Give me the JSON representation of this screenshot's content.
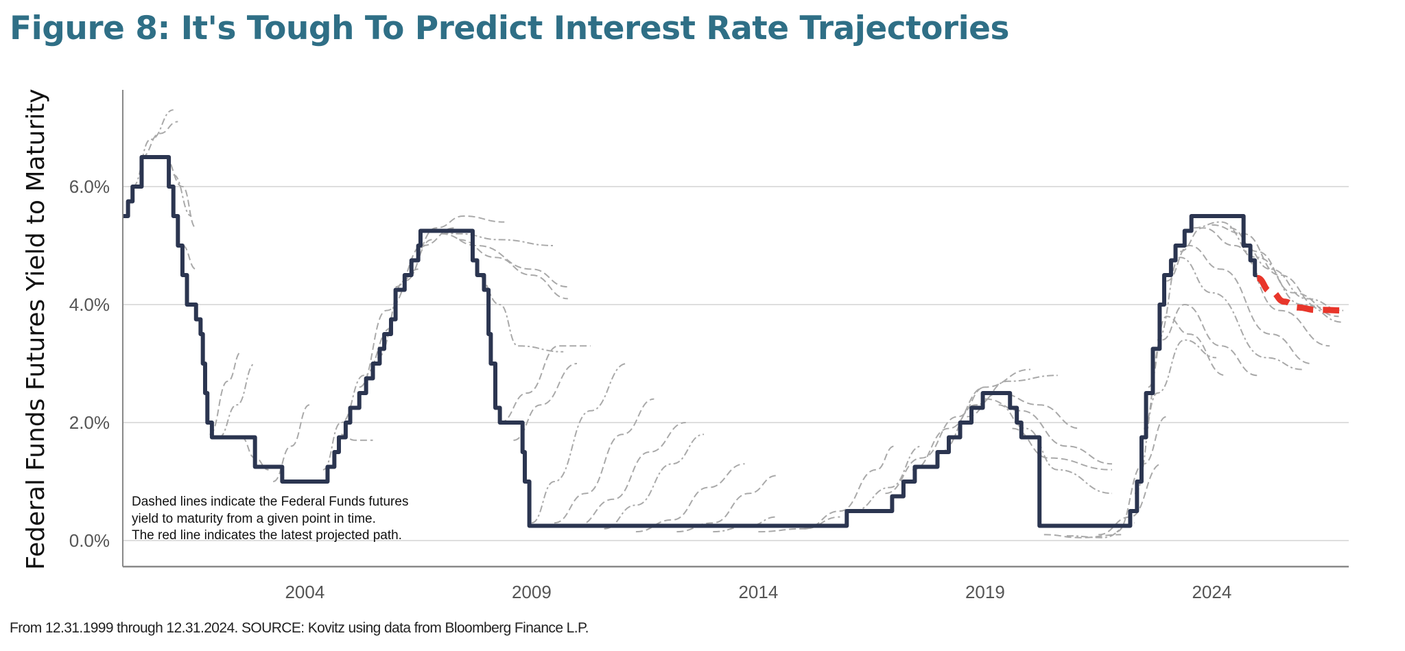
{
  "title": "Figure 8: It's Tough To Predict Interest Rate Trajectories",
  "footer": "From 12.31.1999 through 12.31.2024. SOURCE: Kovitz using data from Bloomberg Finance L.P.",
  "colors": {
    "title": "#2f6f86",
    "fed_funds": "#2b3550",
    "futures": "#a9a9a9",
    "projection": "#e8362b",
    "grid": "#d3d3d3"
  },
  "chart_data": {
    "type": "line",
    "title": "",
    "xlabel": "",
    "ylabel": "Federal Funds Futures Yield to Maturity",
    "xlim": [
      2000,
      2027
    ],
    "ylim": [
      -0.45,
      7.5
    ],
    "x_ticks": [
      2004,
      2009,
      2014,
      2019,
      2024
    ],
    "x_tick_labels": [
      "2004",
      "2009",
      "2014",
      "2019",
      "2024"
    ],
    "y_ticks": [
      0,
      2,
      4,
      6
    ],
    "y_tick_labels": [
      "0.0%",
      "2.0%",
      "4.0%",
      "6.0%"
    ],
    "grid": "horizontal",
    "annotation": [
      "Dashed lines indicate the Federal Funds futures",
      "yield to maturity from a given point in time.",
      "The red line indicates the latest projected path."
    ],
    "fed_funds_steps": [
      [
        2000.0,
        5.5
      ],
      [
        2000.1,
        5.75
      ],
      [
        2000.2,
        6.0
      ],
      [
        2000.4,
        6.5
      ],
      [
        2001.0,
        6.0
      ],
      [
        2001.1,
        5.5
      ],
      [
        2001.2,
        5.0
      ],
      [
        2001.3,
        4.5
      ],
      [
        2001.4,
        4.0
      ],
      [
        2001.6,
        3.75
      ],
      [
        2001.7,
        3.5
      ],
      [
        2001.75,
        3.0
      ],
      [
        2001.8,
        2.5
      ],
      [
        2001.85,
        2.0
      ],
      [
        2001.95,
        1.75
      ],
      [
        2002.9,
        1.25
      ],
      [
        2003.5,
        1.0
      ],
      [
        2004.5,
        1.25
      ],
      [
        2004.65,
        1.5
      ],
      [
        2004.75,
        1.75
      ],
      [
        2004.9,
        2.0
      ],
      [
        2005.0,
        2.25
      ],
      [
        2005.2,
        2.5
      ],
      [
        2005.35,
        2.75
      ],
      [
        2005.5,
        3.0
      ],
      [
        2005.65,
        3.25
      ],
      [
        2005.75,
        3.5
      ],
      [
        2005.9,
        3.75
      ],
      [
        2006.0,
        4.25
      ],
      [
        2006.2,
        4.5
      ],
      [
        2006.35,
        4.75
      ],
      [
        2006.5,
        5.0
      ],
      [
        2006.55,
        5.25
      ],
      [
        2007.7,
        4.75
      ],
      [
        2007.8,
        4.5
      ],
      [
        2007.95,
        4.25
      ],
      [
        2008.05,
        3.5
      ],
      [
        2008.1,
        3.0
      ],
      [
        2008.2,
        2.25
      ],
      [
        2008.3,
        2.0
      ],
      [
        2008.8,
        1.5
      ],
      [
        2008.85,
        1.0
      ],
      [
        2008.95,
        0.25
      ],
      [
        2015.95,
        0.5
      ],
      [
        2016.95,
        0.75
      ],
      [
        2017.2,
        1.0
      ],
      [
        2017.45,
        1.25
      ],
      [
        2017.95,
        1.5
      ],
      [
        2018.2,
        1.75
      ],
      [
        2018.45,
        2.0
      ],
      [
        2018.7,
        2.25
      ],
      [
        2018.95,
        2.5
      ],
      [
        2019.55,
        2.25
      ],
      [
        2019.7,
        2.0
      ],
      [
        2019.8,
        1.75
      ],
      [
        2020.2,
        0.25
      ],
      [
        2022.2,
        0.5
      ],
      [
        2022.35,
        1.0
      ],
      [
        2022.45,
        1.75
      ],
      [
        2022.55,
        2.5
      ],
      [
        2022.7,
        3.25
      ],
      [
        2022.85,
        4.0
      ],
      [
        2022.95,
        4.5
      ],
      [
        2023.1,
        4.75
      ],
      [
        2023.2,
        5.0
      ],
      [
        2023.4,
        5.25
      ],
      [
        2023.55,
        5.5
      ],
      [
        2024.7,
        5.0
      ],
      [
        2024.85,
        4.75
      ],
      [
        2024.95,
        4.5
      ]
    ],
    "projection": [
      [
        2025.0,
        4.45
      ],
      [
        2025.3,
        4.22
      ],
      [
        2025.6,
        4.05
      ],
      [
        2025.9,
        3.95
      ],
      [
        2026.3,
        3.91
      ],
      [
        2027.0,
        3.9
      ]
    ],
    "futures_curves": [
      [
        [
          2000.2,
          6.0
        ],
        [
          2000.6,
          6.8
        ],
        [
          2001.1,
          7.3
        ]
      ],
      [
        [
          2000.4,
          6.5
        ],
        [
          2000.8,
          6.9
        ],
        [
          2001.2,
          7.1
        ]
      ],
      [
        [
          2000.9,
          6.5
        ],
        [
          2001.3,
          6.0
        ],
        [
          2001.6,
          5.3
        ]
      ],
      [
        [
          2001.1,
          6.2
        ],
        [
          2001.5,
          5.5
        ]
      ],
      [
        [
          2001.3,
          5.0
        ],
        [
          2001.6,
          4.6
        ]
      ],
      [
        [
          2001.9,
          1.8
        ],
        [
          2002.3,
          2.7
        ],
        [
          2002.6,
          3.2
        ]
      ],
      [
        [
          2002.1,
          1.75
        ],
        [
          2002.5,
          2.3
        ],
        [
          2002.9,
          3.0
        ]
      ],
      [
        [
          2002.6,
          1.75
        ],
        [
          2002.9,
          1.4
        ],
        [
          2003.2,
          1.2
        ]
      ],
      [
        [
          2003.3,
          1.0
        ],
        [
          2003.7,
          1.6
        ],
        [
          2004.1,
          2.3
        ]
      ],
      [
        [
          2004.4,
          1.2
        ],
        [
          2004.8,
          2.0
        ],
        [
          2005.3,
          2.8
        ],
        [
          2005.9,
          3.6
        ]
      ],
      [
        [
          2004.8,
          1.8
        ],
        [
          2005.1,
          1.7
        ],
        [
          2005.5,
          1.7
        ]
      ],
      [
        [
          2005.2,
          2.6
        ],
        [
          2005.8,
          3.9
        ],
        [
          2006.5,
          4.6
        ]
      ],
      [
        [
          2005.6,
          3.1
        ],
        [
          2006.2,
          4.4
        ],
        [
          2006.8,
          5.1
        ]
      ],
      [
        [
          2006.0,
          4.3
        ],
        [
          2006.6,
          5.0
        ],
        [
          2007.3,
          5.3
        ]
      ],
      [
        [
          2006.3,
          4.7
        ],
        [
          2006.9,
          5.3
        ],
        [
          2007.5,
          5.5
        ],
        [
          2008.4,
          5.4
        ]
      ],
      [
        [
          2006.7,
          5.25
        ],
        [
          2007.4,
          5.2
        ],
        [
          2008.3,
          5.1
        ],
        [
          2009.5,
          5.0
        ]
      ],
      [
        [
          2007.0,
          5.2
        ],
        [
          2007.8,
          5.0
        ],
        [
          2009.0,
          4.6
        ],
        [
          2009.8,
          4.3
        ]
      ],
      [
        [
          2007.4,
          5.1
        ],
        [
          2008.2,
          4.8
        ],
        [
          2009.0,
          4.5
        ],
        [
          2009.8,
          4.1
        ]
      ],
      [
        [
          2007.8,
          4.5
        ],
        [
          2008.3,
          4.0
        ],
        [
          2008.7,
          3.3
        ],
        [
          2009.7,
          3.2
        ]
      ],
      [
        [
          2008.3,
          2.0
        ],
        [
          2008.9,
          2.5
        ],
        [
          2009.6,
          3.3
        ],
        [
          2010.3,
          3.3
        ]
      ],
      [
        [
          2008.6,
          1.7
        ],
        [
          2009.2,
          2.3
        ],
        [
          2010.0,
          3.0
        ]
      ],
      [
        [
          2009.0,
          0.3
        ],
        [
          2009.5,
          1.0
        ],
        [
          2010.3,
          2.2
        ],
        [
          2011.1,
          3.0
        ]
      ],
      [
        [
          2009.5,
          0.3
        ],
        [
          2010.2,
          0.8
        ],
        [
          2011.0,
          1.8
        ],
        [
          2011.7,
          2.4
        ]
      ],
      [
        [
          2010.0,
          0.25
        ],
        [
          2010.8,
          0.7
        ],
        [
          2011.6,
          1.5
        ],
        [
          2012.4,
          2.0
        ]
      ],
      [
        [
          2010.6,
          0.2
        ],
        [
          2011.3,
          0.6
        ],
        [
          2012.1,
          1.3
        ],
        [
          2012.8,
          1.8
        ]
      ],
      [
        [
          2011.3,
          0.15
        ],
        [
          2012.1,
          0.35
        ],
        [
          2012.9,
          0.9
        ],
        [
          2013.7,
          1.3
        ]
      ],
      [
        [
          2012.2,
          0.15
        ],
        [
          2013.0,
          0.3
        ],
        [
          2013.8,
          0.8
        ],
        [
          2014.4,
          1.1
        ]
      ],
      [
        [
          2013.0,
          0.15
        ],
        [
          2013.8,
          0.25
        ],
        [
          2014.4,
          0.4
        ]
      ],
      [
        [
          2014.0,
          0.15
        ],
        [
          2015.0,
          0.2
        ],
        [
          2015.8,
          0.4
        ]
      ],
      [
        [
          2015.0,
          0.2
        ],
        [
          2015.8,
          0.5
        ],
        [
          2016.6,
          1.2
        ],
        [
          2017.0,
          1.6
        ]
      ],
      [
        [
          2016.1,
          0.5
        ],
        [
          2016.9,
          0.9
        ],
        [
          2017.6,
          1.6
        ]
      ],
      [
        [
          2016.8,
          0.8
        ],
        [
          2017.6,
          1.4
        ],
        [
          2018.4,
          2.1
        ],
        [
          2019.0,
          2.6
        ]
      ],
      [
        [
          2017.4,
          1.2
        ],
        [
          2018.2,
          1.9
        ],
        [
          2019.0,
          2.6
        ],
        [
          2020.0,
          2.9
        ]
      ],
      [
        [
          2018.0,
          1.5
        ],
        [
          2018.8,
          2.3
        ],
        [
          2019.5,
          2.7
        ],
        [
          2020.6,
          2.8
        ]
      ],
      [
        [
          2018.6,
          2.1
        ],
        [
          2019.3,
          2.5
        ],
        [
          2020.2,
          2.3
        ],
        [
          2021.1,
          1.9
        ]
      ],
      [
        [
          2019.0,
          2.4
        ],
        [
          2019.8,
          2.2
        ],
        [
          2020.8,
          1.6
        ],
        [
          2021.8,
          1.3
        ]
      ],
      [
        [
          2019.3,
          2.3
        ],
        [
          2019.9,
          1.9
        ],
        [
          2020.6,
          1.2
        ],
        [
          2021.8,
          0.8
        ]
      ],
      [
        [
          2019.6,
          1.9
        ],
        [
          2020.4,
          1.4
        ],
        [
          2021.8,
          1.2
        ]
      ],
      [
        [
          2020.3,
          0.1
        ],
        [
          2021.1,
          0.05
        ],
        [
          2022.0,
          0.1
        ]
      ],
      [
        [
          2020.8,
          0.08
        ],
        [
          2021.6,
          0.05
        ],
        [
          2022.3,
          0.3
        ]
      ],
      [
        [
          2021.5,
          0.1
        ],
        [
          2022.2,
          0.4
        ],
        [
          2022.9,
          1.3
        ]
      ],
      [
        [
          2021.9,
          0.15
        ],
        [
          2022.5,
          1.3
        ],
        [
          2023.0,
          2.1
        ]
      ],
      [
        [
          2022.3,
          0.8
        ],
        [
          2022.8,
          2.5
        ],
        [
          2023.4,
          3.4
        ],
        [
          2024.1,
          3.1
        ]
      ],
      [
        [
          2022.5,
          1.9
        ],
        [
          2022.9,
          3.4
        ],
        [
          2023.4,
          4.0
        ],
        [
          2024.2,
          3.3
        ],
        [
          2025.0,
          2.8
        ]
      ],
      [
        [
          2022.6,
          2.6
        ],
        [
          2023.0,
          3.8
        ],
        [
          2023.5,
          3.5
        ],
        [
          2024.3,
          2.8
        ]
      ],
      [
        [
          2022.8,
          3.4
        ],
        [
          2023.3,
          4.8
        ],
        [
          2024.0,
          4.2
        ],
        [
          2025.2,
          3.1
        ],
        [
          2026.0,
          2.9
        ]
      ],
      [
        [
          2023.0,
          4.4
        ],
        [
          2023.5,
          5.0
        ],
        [
          2024.2,
          4.6
        ],
        [
          2025.3,
          3.5
        ],
        [
          2026.2,
          3.0
        ]
      ],
      [
        [
          2023.3,
          4.9
        ],
        [
          2023.8,
          5.3
        ],
        [
          2024.5,
          5.0
        ],
        [
          2025.5,
          3.9
        ],
        [
          2026.6,
          3.3
        ]
      ],
      [
        [
          2023.6,
          5.3
        ],
        [
          2024.2,
          5.4
        ],
        [
          2025.0,
          4.8
        ],
        [
          2026.0,
          4.0
        ],
        [
          2026.9,
          3.7
        ]
      ],
      [
        [
          2024.0,
          5.35
        ],
        [
          2024.7,
          5.2
        ],
        [
          2025.5,
          4.5
        ],
        [
          2026.4,
          3.95
        ]
      ],
      [
        [
          2024.4,
          5.3
        ],
        [
          2025.0,
          4.9
        ],
        [
          2025.8,
          4.2
        ],
        [
          2026.8,
          3.8
        ]
      ],
      [
        [
          2024.7,
          5.0
        ],
        [
          2025.3,
          4.6
        ],
        [
          2026.1,
          4.1
        ],
        [
          2026.9,
          3.9
        ]
      ]
    ]
  }
}
